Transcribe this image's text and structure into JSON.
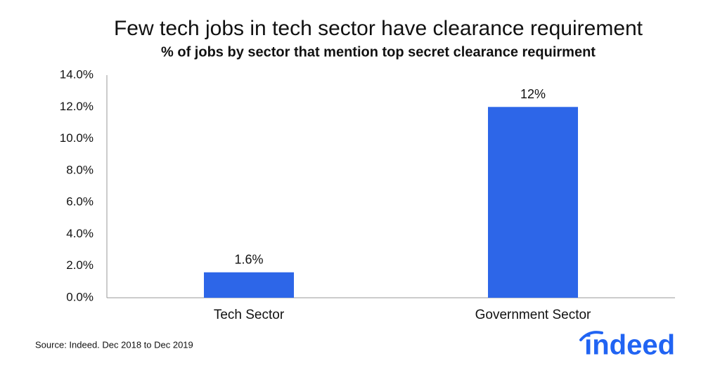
{
  "chart_data": {
    "type": "bar",
    "title": "Few tech jobs in tech sector have clearance requirement",
    "subtitle": "% of jobs by sector that mention top secret clearance requirment",
    "categories": [
      "Tech Sector",
      "Government Sector"
    ],
    "values": [
      1.6,
      12
    ],
    "value_labels": [
      "1.6%",
      "12%"
    ],
    "color": "#2d66e8",
    "ylim": [
      0,
      14
    ],
    "yticks": [
      {
        "value": 0,
        "label": "0.0%"
      },
      {
        "value": 2,
        "label": "2.0%"
      },
      {
        "value": 4,
        "label": "4.0%"
      },
      {
        "value": 6,
        "label": "6.0%"
      },
      {
        "value": 8,
        "label": "8.0%"
      },
      {
        "value": 10,
        "label": "10.0%"
      },
      {
        "value": 12,
        "label": "12.0%"
      },
      {
        "value": 14,
        "label": "14.0%"
      }
    ],
    "grid": false,
    "source": "Source: Indeed. Dec 2018 to Dec 2019",
    "brand": "indeed"
  }
}
